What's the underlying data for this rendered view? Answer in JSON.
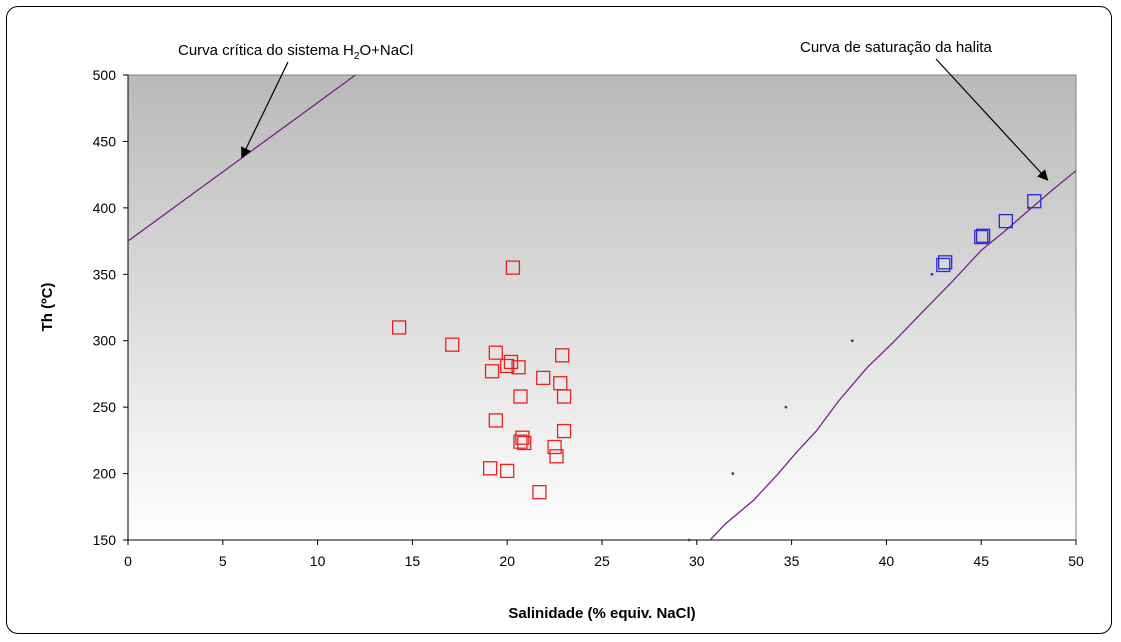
{
  "chart_data": {
    "type": "scatter",
    "xlabel": "Salinidade (% equiv. NaCl)",
    "ylabel": "Th (ºC)",
    "xlim": [
      0,
      50
    ],
    "ylim": [
      150,
      500
    ],
    "xticks": [
      "0",
      "5",
      "10",
      "15",
      "20",
      "25",
      "30",
      "35",
      "40",
      "45",
      "50"
    ],
    "yticks": [
      "150",
      "200",
      "250",
      "300",
      "350",
      "400",
      "450",
      "500"
    ],
    "grid": false,
    "plot_background": "gradient gray (top) to white (bottom)",
    "series": [
      {
        "marker": "square-open",
        "color": "#e8231e",
        "points": [
          [
            14.3,
            310
          ],
          [
            17.1,
            297
          ],
          [
            19.4,
            291
          ],
          [
            20.3,
            355
          ],
          [
            19.2,
            277
          ],
          [
            20.0,
            281
          ],
          [
            20.2,
            284
          ],
          [
            20.6,
            280
          ],
          [
            21.9,
            272
          ],
          [
            22.9,
            289
          ],
          [
            22.8,
            268
          ],
          [
            23.0,
            258
          ],
          [
            20.7,
            258
          ],
          [
            19.4,
            240
          ],
          [
            20.8,
            227
          ],
          [
            20.7,
            224
          ],
          [
            20.9,
            223
          ],
          [
            22.5,
            220
          ],
          [
            23.0,
            232
          ],
          [
            22.6,
            213
          ],
          [
            19.1,
            204
          ],
          [
            20.0,
            202
          ],
          [
            21.7,
            186
          ]
        ]
      },
      {
        "marker": "square-open",
        "color": "#2b2bd6",
        "points": [
          [
            43.0,
            357
          ],
          [
            43.1,
            359
          ],
          [
            45.0,
            378
          ],
          [
            45.1,
            379
          ],
          [
            46.3,
            390
          ],
          [
            47.8,
            405
          ]
        ]
      },
      {
        "marker": "dot",
        "color": "#7a1f8a",
        "points": [
          [
            29.6,
            150
          ],
          [
            31.9,
            200
          ],
          [
            34.7,
            250
          ],
          [
            38.2,
            300
          ],
          [
            42.4,
            350
          ],
          [
            47.5,
            400
          ]
        ]
      }
    ],
    "curves": [
      {
        "name": "Curva crítica do sistema H2O+NaCl",
        "color": "#7a1f8a",
        "points": [
          [
            0,
            375
          ],
          [
            12.0,
            500
          ]
        ]
      },
      {
        "name": "Curva de saturação da halita",
        "color": "#7a1f8a",
        "points": [
          [
            30.2,
            144
          ],
          [
            30.7,
            150
          ],
          [
            31.5,
            162
          ],
          [
            33.0,
            180
          ],
          [
            34.3,
            200
          ],
          [
            35.2,
            215
          ],
          [
            36.3,
            232
          ],
          [
            37.5,
            255
          ],
          [
            39.0,
            280
          ],
          [
            40.3,
            298
          ],
          [
            41.8,
            320
          ],
          [
            43.5,
            345
          ],
          [
            45.0,
            368
          ],
          [
            46.2,
            382
          ],
          [
            47.5,
            398
          ],
          [
            48.8,
            414
          ],
          [
            50.0,
            428
          ]
        ]
      }
    ],
    "annotations": [
      {
        "text_main": "Curva crítica do sistema H",
        "sub1": "2",
        "mid": "O+NaCl",
        "arrow_to": [
          6.0,
          438
        ]
      },
      {
        "text": "Curva de saturação da halita",
        "arrow_to": [
          48.5,
          421
        ]
      }
    ]
  }
}
